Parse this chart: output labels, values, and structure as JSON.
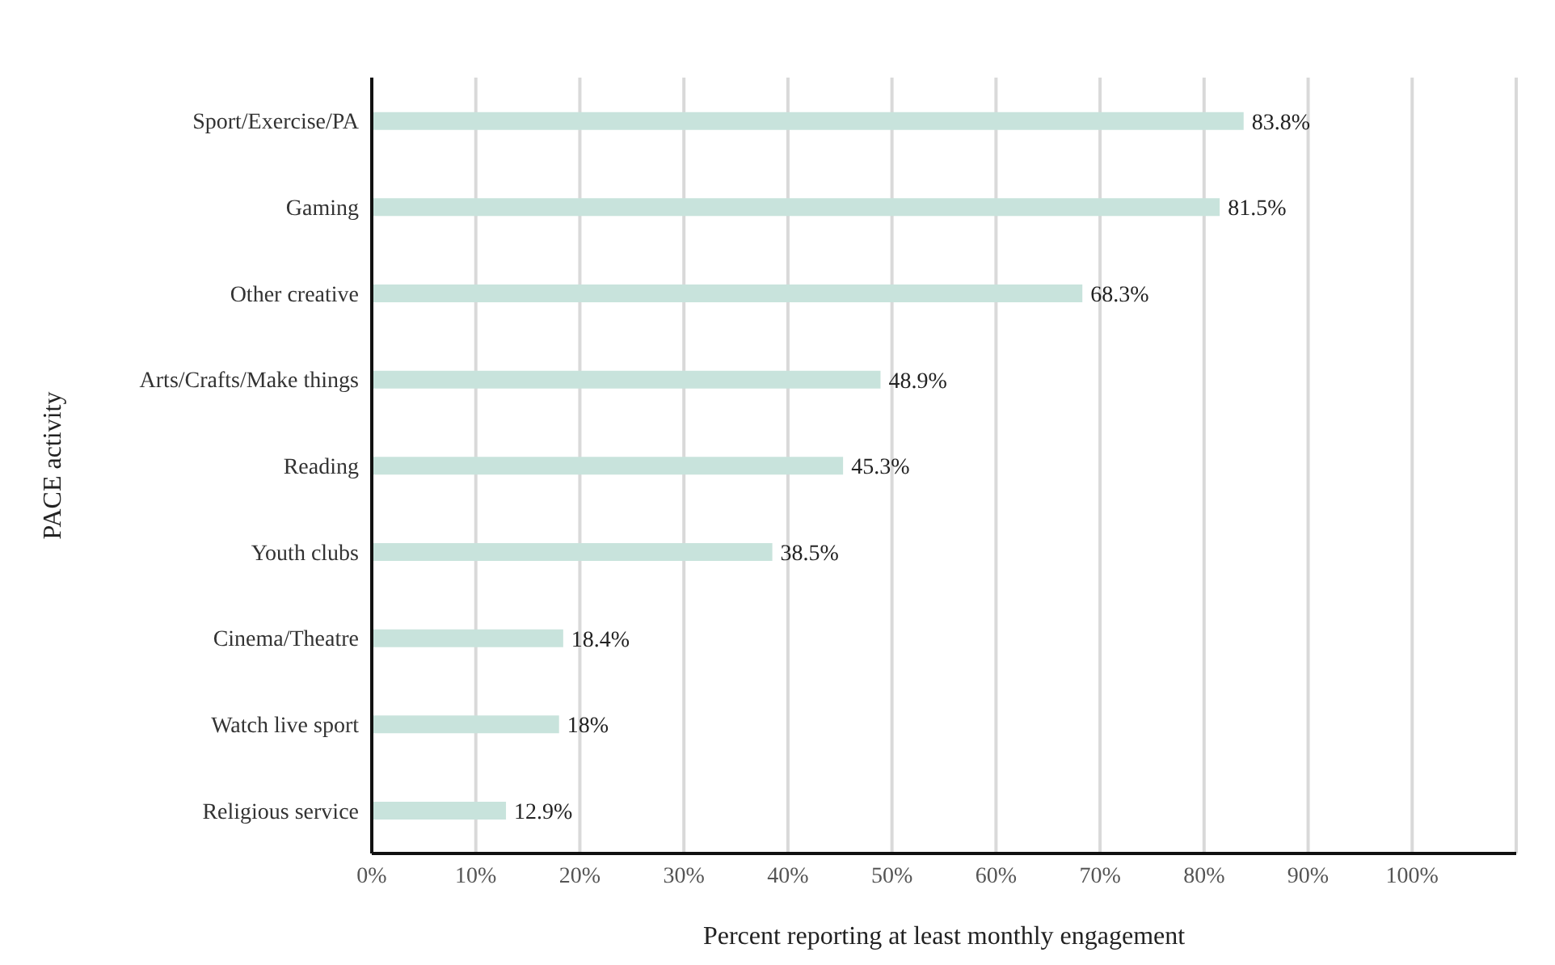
{
  "chart_data": {
    "type": "bar",
    "orientation": "horizontal",
    "xlabel": "Percent reporting at least monthly engagement",
    "ylabel": "PACE activity",
    "categories": [
      "Sport/Exercise/PA",
      "Gaming",
      "Other creative",
      "Arts/Crafts/Make things",
      "Reading",
      "Youth clubs",
      "Cinema/Theatre",
      "Watch live sport",
      "Religious service"
    ],
    "values": [
      83.8,
      81.5,
      68.3,
      48.9,
      45.3,
      38.5,
      18.4,
      18,
      12.9
    ],
    "value_labels": [
      "83.8%",
      "81.5%",
      "68.3%",
      "48.9%",
      "45.3%",
      "38.5%",
      "18.4%",
      "18%",
      "12.9%"
    ],
    "color": "#c8e3dc",
    "xlim": [
      0,
      110
    ],
    "xticks": [
      {
        "value": 0,
        "label": "0%"
      },
      {
        "value": 10,
        "label": "10%"
      },
      {
        "value": 20,
        "label": "20%"
      },
      {
        "value": 30,
        "label": "30%"
      },
      {
        "value": 40,
        "label": "40%"
      },
      {
        "value": 50,
        "label": "50%"
      },
      {
        "value": 60,
        "label": "60%"
      },
      {
        "value": 70,
        "label": "70%"
      },
      {
        "value": 80,
        "label": "80%"
      },
      {
        "value": 90,
        "label": "90%"
      },
      {
        "value": 100,
        "label": "100%"
      }
    ],
    "grid": "x"
  }
}
